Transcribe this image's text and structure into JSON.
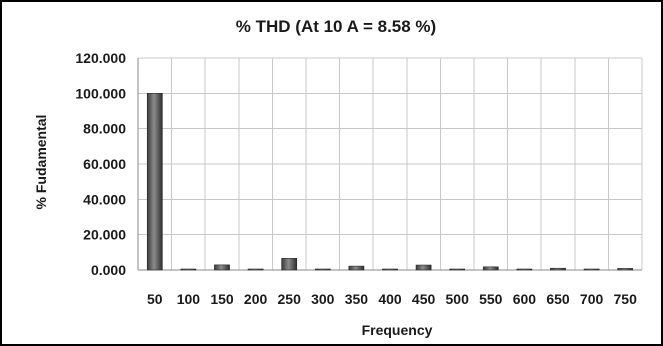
{
  "chart_data": {
    "type": "bar",
    "title": "% THD (At 10 A = 8.58 %)",
    "xlabel": "Frequency",
    "ylabel": "% Fudamental",
    "categories": [
      "50",
      "100",
      "150",
      "200",
      "250",
      "300",
      "350",
      "400",
      "450",
      "500",
      "550",
      "600",
      "650",
      "700",
      "750"
    ],
    "values": [
      100.0,
      0.3,
      2.9,
      0.3,
      6.6,
      0.3,
      2.2,
      0.3,
      2.8,
      0.3,
      1.8,
      0.3,
      1.0,
      0.3,
      0.9
    ],
    "ylim": [
      0,
      120
    ],
    "yticks": [
      "0.000",
      "20.000",
      "40.000",
      "60.000",
      "80.000",
      "100.000",
      "120.000"
    ],
    "ytick_values": [
      0,
      20,
      40,
      60,
      80,
      100,
      120
    ],
    "grid": true,
    "legend": "none",
    "bar_color": "#555555"
  }
}
